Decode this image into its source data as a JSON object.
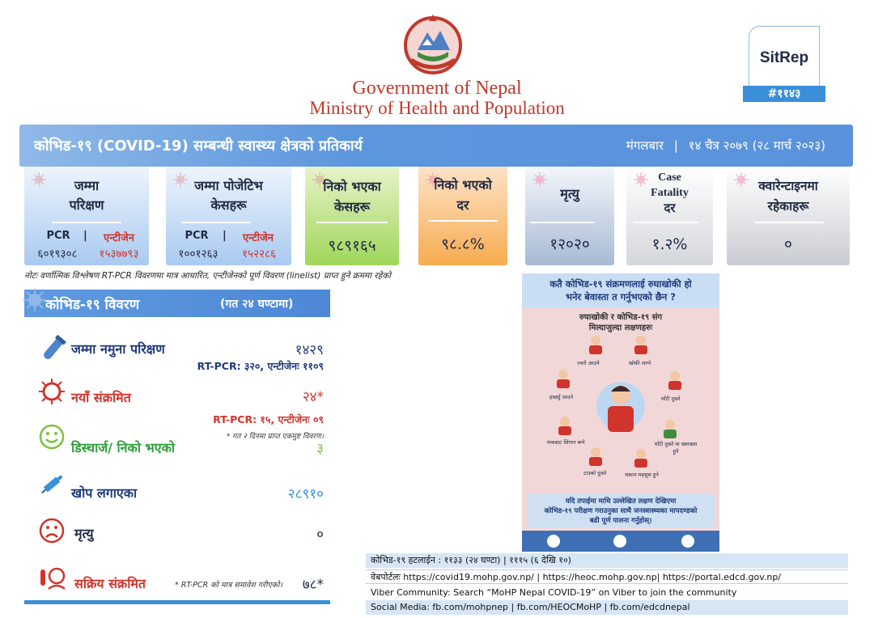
{
  "header": {
    "gov_title": "Government of Nepal",
    "ministry_title": "Ministry of Health and Population",
    "sitrep_label": "SitRep",
    "sitrep_number": "#११४३"
  },
  "banner": {
    "title": "कोभिड-१९ (COVID-19) सम्बन्धी स्वास्थ्य क्षेत्रको प्रतिकार्य",
    "day": "मंगलबार",
    "separator": "|",
    "date": "१४ चैत्र २०७९ (२८ मार्च २०२३)"
  },
  "cards": {
    "tests": {
      "label_line1": "जम्मा",
      "label_line2": "परिक्षण",
      "pcr_label": "PCR",
      "antigen_label": "एन्टीजेन",
      "sep": "|",
      "pcr_value": "६०१९३०८",
      "antigen_value": "१५३७७९३"
    },
    "positive": {
      "label_line1": "जम्मा पोजेटिभ",
      "label_line2": "केसहरू",
      "pcr_label": "PCR",
      "antigen_label": "एन्टीजेन",
      "sep": "|",
      "pcr_value": "१००१२६३",
      "antigen_value": "१५२२८६"
    },
    "recovered": {
      "label_line1": "निको भएका",
      "label_line2": "केसहरू",
      "value": "९८९१६५"
    },
    "recovery_rate": {
      "label_line1": "निको भएको",
      "label_line2": "दर",
      "value": "९८.८%"
    },
    "deaths": {
      "label": "मृत्यु",
      "value": "१२०२०"
    },
    "cfr": {
      "label_line1": "Case",
      "label_line2": "Fatality",
      "label_line3": "दर",
      "value": "१.२%"
    },
    "quarantine": {
      "label_line1": "क्वारेन्टाइनमा",
      "label_line2": "रहेकाहरू",
      "value": "०"
    }
  },
  "note": "नोटः वर्णात्मिक विश्लेषण RT-PCR विवरणमा मात्र आधारित, एन्टीजेनको पूर्ण विवरण (linelist) प्राप्त हुने क्रममा रहेको",
  "details": {
    "title": "कोभिड-१९ विवरण",
    "subtitle": "(गत २४ घण्टामा)",
    "samples": {
      "label": "जम्मा नमुना परिक्षण",
      "value": "१४२९",
      "sub": "RT-PCR: ३२०, एन्टीजेनः ११०९"
    },
    "new_cases": {
      "label": "नयाँ संक्रमित",
      "value": "२४*",
      "sub": "RT-PCR: १५, एन्टीजेनः ०९",
      "footnote": "* गत २ दिनमा प्राप्त एकमुष्ट विवरण।"
    },
    "discharged": {
      "label": "डिस्चार्ज/ निको भएको",
      "value": "३"
    },
    "vaccinated": {
      "label": "खोप लगाएका",
      "value": "२८९१०"
    },
    "deaths": {
      "label": "मृत्यु",
      "value": "०"
    },
    "active": {
      "label": "सक्रिय संक्रमित",
      "value": "७८*",
      "footnote": "* RT-PCR को मात्र समावेश गरीएको।"
    }
  },
  "poster": {
    "heading_line1": "कतै कोभिड-१९ संक्रमणलाई रुघाखोकी हो",
    "heading_line2": "भनेर बेवास्ता त गर्नुभएको छैन ?",
    "sub_line1": "रुघाखोकी र कोभिड-१९ संग",
    "sub_line2": "मिल्दाजुल्दा लक्षणहरुः",
    "symptoms": [
      "ज्वरो आउने",
      "खोकी लाग्ने",
      "हाछ्युँ आउने",
      "घाँटी दुख्ने",
      "नाकबाट सिंगान बग्ने",
      "घाँटी दुख्ने वा खसखस हुने",
      "टाउको दुख्ने",
      "थकान महसुस हुने"
    ],
    "footer_line1": "यदि तपाईमा माथि उल्लेखित लक्षण देखिएमा",
    "footer_line2": "कोभिड-१९ परीक्षण गराउनुका साथै जनस्वास्थ्यका मापदण्डको",
    "footer_line3": "बढी पूर्ण पालना गर्नुहोस्।"
  },
  "info": {
    "hotline": "कोभिड-१९ हटलाईन : ११३३ (२४ घण्टा) | १११५ (६ देखि १०)",
    "portal": "वेबपोर्टलः https://covid19.mohp.gov.np/ | https://heoc.mohp.gov.np| https://portal.edcd.gov.np/",
    "viber": "Viber Community: Search “MoHP Nepal COVID-19” on Viber to join the community",
    "social": "Social Media: fb.com/mohpnep | fb.com/HEOCMoHP | fb.com/edcdnepal"
  },
  "colors": {
    "banner_blue": "#5a93dc",
    "red": "#d0342c",
    "emblem_red": "#c0392b",
    "label_blue": "#1f3a7a"
  }
}
